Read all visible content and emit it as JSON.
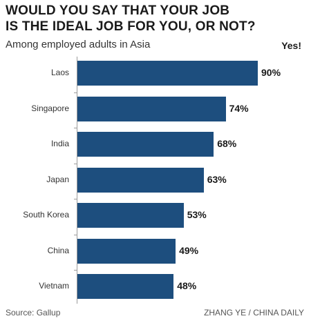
{
  "chart_data": {
    "type": "bar",
    "orientation": "horizontal",
    "title_lines": [
      "WOULD YOU SAY THAT YOUR JOB",
      "IS THE IDEAL JOB FOR YOU, OR NOT?"
    ],
    "subtitle": "Among employed adults in Asia",
    "series_label": "Yes!",
    "categories": [
      "Laos",
      "Singapore",
      "India",
      "Japan",
      "South Korea",
      "China",
      "Vietnam"
    ],
    "values": [
      90,
      74,
      68,
      63,
      53,
      49,
      48
    ],
    "value_labels": [
      "90%",
      "74%",
      "68%",
      "63%",
      "53%",
      "49%",
      "48%"
    ],
    "unit": "%",
    "xlim": [
      0,
      100
    ],
    "grid": false,
    "legend": "none",
    "bar_color": "#1d4e7e"
  },
  "footer": {
    "source": "Source: Gallup",
    "credit": "ZHANG YE / CHINA DAILY"
  }
}
